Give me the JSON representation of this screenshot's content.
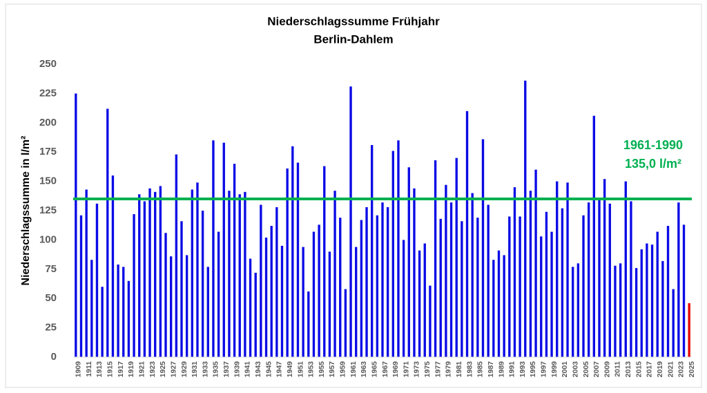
{
  "chart_data": {
    "type": "bar",
    "title": "Niederschlagssumme Frühjahr",
    "subtitle": "Berlin-Dahlem",
    "y_label": "Niederschlagssumme in l/m²",
    "categories": [
      "1909",
      null,
      "1911",
      null,
      "1913",
      null,
      "1915",
      null,
      "1917",
      null,
      "1919",
      null,
      "1921",
      null,
      "1923",
      null,
      "1925",
      null,
      "1927",
      null,
      "1929",
      null,
      "1931",
      null,
      "1933",
      null,
      "1935",
      null,
      "1937",
      null,
      "1939",
      null,
      "1941",
      null,
      "1943",
      null,
      "1945",
      null,
      "1947",
      null,
      "1949",
      null,
      "1951",
      null,
      "1953",
      null,
      "1955",
      null,
      "1957",
      null,
      "1959",
      null,
      "1961",
      null,
      "1963",
      null,
      "1965",
      null,
      "1967",
      null,
      "1969",
      null,
      "1971",
      null,
      "1973",
      null,
      "1975",
      null,
      "1977",
      null,
      "1979",
      null,
      "1981",
      null,
      "1983",
      null,
      "1985",
      null,
      "1987",
      null,
      "1989",
      null,
      "1991",
      null,
      "1993",
      null,
      "1995",
      null,
      "1997",
      null,
      "1999",
      null,
      "2001",
      null,
      "2003",
      null,
      "2005",
      null,
      "2007",
      null,
      "2009",
      null,
      "2011",
      null,
      "2013",
      null,
      "2015",
      null,
      "2017",
      null,
      "2019",
      null,
      "2021",
      null,
      "2023",
      null,
      "2025"
    ],
    "values": [
      225,
      121,
      143,
      83,
      131,
      60,
      212,
      155,
      79,
      77,
      65,
      122,
      139,
      133,
      144,
      141,
      146,
      106,
      86,
      173,
      116,
      87,
      143,
      149,
      125,
      77,
      185,
      107,
      183,
      142,
      165,
      139,
      141,
      84,
      72,
      130,
      102,
      112,
      128,
      95,
      161,
      180,
      166,
      94,
      56,
      107,
      113,
      163,
      90,
      142,
      119,
      58,
      231,
      94,
      117,
      128,
      181,
      121,
      132,
      128,
      176,
      185,
      100,
      162,
      144,
      91,
      97,
      61,
      168,
      118,
      147,
      132,
      170,
      116,
      210,
      140,
      119,
      186,
      130,
      83,
      91,
      87,
      120,
      145,
      120,
      236,
      142,
      160,
      103,
      124,
      107,
      150,
      127,
      149,
      77,
      80,
      121,
      132,
      206,
      134,
      152,
      131,
      78,
      80,
      150,
      133,
      76,
      92,
      97,
      96,
      107,
      82,
      112,
      58,
      132,
      113,
      46
    ],
    "colors": [
      "#0a0ae6",
      "#0a0ae6",
      "#0a0ae6",
      "#0a0ae6",
      "#0a0ae6",
      "#0a0ae6",
      "#0a0ae6",
      "#0a0ae6",
      "#0a0ae6",
      "#0a0ae6",
      "#0a0ae6",
      "#0a0ae6",
      "#0a0ae6",
      "#0a0ae6",
      "#0a0ae6",
      "#0a0ae6",
      "#0a0ae6",
      "#0a0ae6",
      "#0a0ae6",
      "#0a0ae6",
      "#0a0ae6",
      "#0a0ae6",
      "#0a0ae6",
      "#0a0ae6",
      "#0a0ae6",
      "#0a0ae6",
      "#0a0ae6",
      "#0a0ae6",
      "#0a0ae6",
      "#0a0ae6",
      "#0a0ae6",
      "#0a0ae6",
      "#0a0ae6",
      "#0a0ae6",
      "#0a0ae6",
      "#0a0ae6",
      "#0a0ae6",
      "#0a0ae6",
      "#0a0ae6",
      "#0a0ae6",
      "#0a0ae6",
      "#0a0ae6",
      "#0a0ae6",
      "#0a0ae6",
      "#0a0ae6",
      "#0a0ae6",
      "#0a0ae6",
      "#0a0ae6",
      "#0a0ae6",
      "#0a0ae6",
      "#0a0ae6",
      "#0a0ae6",
      "#0a0ae6",
      "#0a0ae6",
      "#0a0ae6",
      "#0a0ae6",
      "#0a0ae6",
      "#0a0ae6",
      "#0a0ae6",
      "#0a0ae6",
      "#0a0ae6",
      "#0a0ae6",
      "#0a0ae6",
      "#0a0ae6",
      "#0a0ae6",
      "#0a0ae6",
      "#0a0ae6",
      "#0a0ae6",
      "#0a0ae6",
      "#0a0ae6",
      "#0a0ae6",
      "#0a0ae6",
      "#0a0ae6",
      "#0a0ae6",
      "#0a0ae6",
      "#0a0ae6",
      "#0a0ae6",
      "#0a0ae6",
      "#0a0ae6",
      "#0a0ae6",
      "#0a0ae6",
      "#0a0ae6",
      "#0a0ae6",
      "#0a0ae6",
      "#0a0ae6",
      "#0a0ae6",
      "#0a0ae6",
      "#0a0ae6",
      "#0a0ae6",
      "#0a0ae6",
      "#0a0ae6",
      "#0a0ae6",
      "#0a0ae6",
      "#0a0ae6",
      "#0a0ae6",
      "#0a0ae6",
      "#0a0ae6",
      "#0a0ae6",
      "#0a0ae6",
      "#0a0ae6",
      "#0a0ae6",
      "#0a0ae6",
      "#0a0ae6",
      "#0a0ae6",
      "#0a0ae6",
      "#0a0ae6",
      "#0a0ae6",
      "#0a0ae6",
      "#0a0ae6",
      "#0a0ae6",
      "#0a0ae6",
      "#0a0ae6",
      "#0a0ae6",
      "#0a0ae6",
      "#0a0ae6",
      "#0a0ae6",
      "#e60000"
    ],
    "ylim": [
      0,
      250
    ],
    "yticks": [
      0,
      25,
      50,
      75,
      100,
      125,
      150,
      175,
      200,
      225,
      250
    ],
    "grid": false,
    "reference": {
      "value": 135,
      "label": "1961-1990",
      "value_label": "135,0 l/m²",
      "color": "#00b050"
    }
  }
}
